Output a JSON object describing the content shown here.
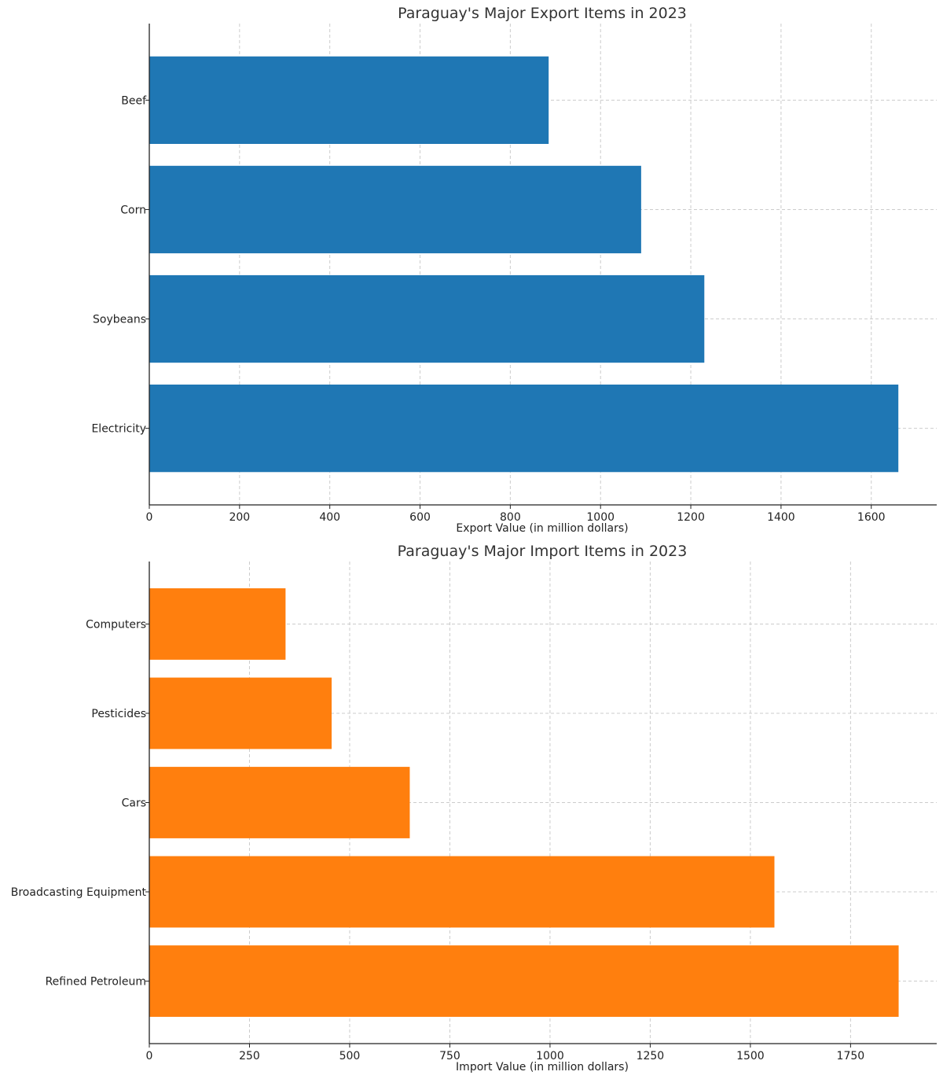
{
  "chart_data": [
    {
      "type": "bar",
      "orientation": "horizontal",
      "title": "Paraguay's Major Export Items in 2023",
      "xlabel": "Export Value (in million dollars)",
      "ylabel": "",
      "categories": [
        "Electricity",
        "Soybeans",
        "Corn",
        "Beef"
      ],
      "values": [
        1660,
        1230,
        1090,
        885
      ],
      "xlim": [
        0,
        1745
      ],
      "xticks": [
        0,
        200,
        400,
        600,
        800,
        1000,
        1200,
        1400,
        1600
      ],
      "color": "#1f77b4",
      "grid": true
    },
    {
      "type": "bar",
      "orientation": "horizontal",
      "title": "Paraguay's Major Import Items in 2023",
      "xlabel": "Import Value (in million dollars)",
      "ylabel": "",
      "categories": [
        "Refined Petroleum",
        "Broadcasting Equipment",
        "Cars",
        "Pesticides",
        "Computers"
      ],
      "values": [
        1870,
        1560,
        650,
        455,
        340
      ],
      "xlim": [
        0,
        1965
      ],
      "xticks": [
        0,
        250,
        500,
        750,
        1000,
        1250,
        1500,
        1750
      ],
      "color": "#ff7f0e",
      "grid": true
    }
  ]
}
